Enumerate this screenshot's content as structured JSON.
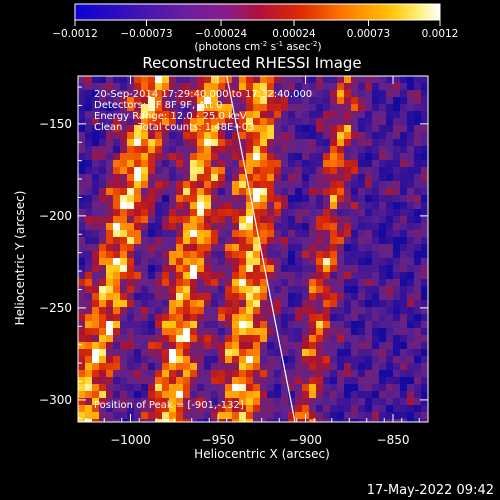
{
  "colorbar": {
    "ticks": [
      "-0.0012",
      "-0.00073",
      "-0.00024",
      "0.00024",
      "0.00073",
      "0.0012"
    ],
    "units_label": "(photons cm",
    "units_exp1": "-2",
    "units_mid": " s",
    "units_exp2": "-1",
    "units_mid2": " asec",
    "units_exp3": "-2",
    "units_end": ")",
    "range": [
      -0.0012,
      0.0012
    ]
  },
  "chart_data": {
    "type": "heatmap",
    "title": "Reconstructed RHESSI Image",
    "xlabel": "Heliocentric X (arcsec)",
    "ylabel": "Heliocentric Y (arcsec)",
    "xlim": [
      -1030,
      -830
    ],
    "ylim": [
      -312,
      -124
    ],
    "x_ticks": [
      -1000,
      -950,
      -900,
      -850
    ],
    "y_ticks": [
      -150,
      -200,
      -250,
      -300
    ],
    "x_tick_labels": [
      "−1000",
      "−950",
      "−900",
      "−850"
    ],
    "y_tick_labels": [
      "−150",
      "−200",
      "−250",
      "−300"
    ],
    "annotations": [
      "20-Sep-2014 17:29:40.000 to 17:32:40.000",
      "Detectors: 3F 8F 9F, Att 0",
      "Energy Range: 12.0 - 25.0 keV",
      "Clean     Total counts: 1.48E+03"
    ],
    "peak_label": "Position of Peak = [-901,-132]",
    "limb_line": {
      "from": [
        -945,
        -124
      ],
      "to": [
        -906,
        -312
      ]
    },
    "bright_ridges": [
      {
        "x_at_top": -985,
        "x_at_bottom": -1028
      },
      {
        "x_at_top": -952,
        "x_at_bottom": -978
      },
      {
        "x_at_top": -925,
        "x_at_bottom": -938
      },
      {
        "x_at_top": -875,
        "x_at_bottom": -900
      }
    ]
  },
  "footer": {
    "timestamp": "17-May-2022 09:42"
  },
  "colors": {
    "background": "#000000",
    "foreground": "#ffffff"
  }
}
